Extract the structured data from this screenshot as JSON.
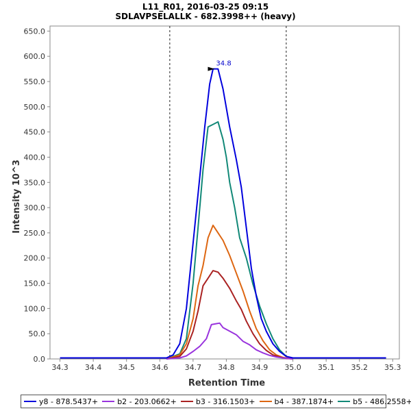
{
  "chart_data": {
    "type": "line",
    "title": "L11_R01, 2016-03-25 09:15",
    "subtitle": "SDLAVPSELALLK - 682.3998++ (heavy)",
    "xlabel": "Retention Time",
    "ylabel": "Intensity 10^3",
    "xlim": [
      34.27,
      35.32
    ],
    "ylim": [
      0,
      660
    ],
    "x_ticks": [
      "34.3",
      "34.4",
      "34.5",
      "34.6",
      "34.7",
      "34.8",
      "34.9",
      "35.0",
      "35.1",
      "35.2",
      "35.3"
    ],
    "x_tick_values": [
      34.3,
      34.4,
      34.5,
      34.6,
      34.7,
      34.8,
      34.9,
      35.0,
      35.1,
      35.2,
      35.3
    ],
    "y_ticks": [
      "0.0",
      "50.0",
      "100.0",
      "150.0",
      "200.0",
      "250.0",
      "300.0",
      "350.0",
      "400.0",
      "450.0",
      "500.0",
      "550.0",
      "600.0",
      "650.0"
    ],
    "y_tick_values": [
      0,
      50,
      100,
      150,
      200,
      250,
      300,
      350,
      400,
      450,
      500,
      550,
      600,
      650
    ],
    "vlines": [
      34.63,
      34.98
    ],
    "peak_annotation": {
      "text": "34.8",
      "x": 34.765,
      "y": 575
    },
    "grid": false,
    "legend_position": "bottom",
    "series": [
      {
        "name": "y8 - 878.5437+",
        "color": "#0000dd",
        "x": [
          34.3,
          34.62,
          34.64,
          34.66,
          34.68,
          34.7,
          34.72,
          34.735,
          34.75,
          34.76,
          34.775,
          34.79,
          34.81,
          34.83,
          34.845,
          34.86,
          34.875,
          34.89,
          34.905,
          34.92,
          34.94,
          34.96,
          34.98,
          35.0,
          35.28
        ],
        "y": [
          2,
          2,
          8,
          30,
          100,
          230,
          360,
          460,
          545,
          575,
          575,
          535,
          460,
          395,
          340,
          260,
          180,
          125,
          80,
          55,
          30,
          15,
          5,
          2,
          2
        ]
      },
      {
        "name": "b2 - 203.0662+",
        "color": "#9933dd",
        "x": [
          34.62,
          34.66,
          34.68,
          34.7,
          34.72,
          34.74,
          34.755,
          34.77,
          34.78,
          34.79,
          34.81,
          34.83,
          34.85,
          34.87,
          34.89,
          34.91,
          34.93,
          34.95,
          34.97,
          35.0
        ],
        "y": [
          0,
          2,
          6,
          15,
          25,
          40,
          68,
          70,
          71,
          62,
          55,
          48,
          35,
          28,
          18,
          12,
          7,
          4,
          2,
          0
        ]
      },
      {
        "name": "b3 - 316.1503+",
        "color": "#aa2222",
        "x": [
          34.62,
          34.66,
          34.68,
          34.7,
          34.715,
          34.73,
          34.745,
          34.76,
          34.775,
          34.79,
          34.81,
          34.83,
          34.845,
          34.86,
          34.88,
          34.9,
          34.92,
          34.94,
          34.96,
          34.98,
          35.0
        ],
        "y": [
          0,
          5,
          20,
          55,
          95,
          145,
          160,
          175,
          172,
          160,
          140,
          115,
          98,
          75,
          50,
          30,
          17,
          8,
          4,
          1,
          0
        ]
      },
      {
        "name": "b4 - 387.1874+",
        "color": "#dd6611",
        "x": [
          34.62,
          34.66,
          34.68,
          34.7,
          34.715,
          34.73,
          34.745,
          34.76,
          34.775,
          34.79,
          34.81,
          34.83,
          34.85,
          34.87,
          34.89,
          34.91,
          34.93,
          34.95,
          34.97,
          35.0
        ],
        "y": [
          0,
          8,
          30,
          80,
          145,
          185,
          240,
          265,
          250,
          235,
          205,
          170,
          135,
          95,
          60,
          36,
          18,
          8,
          3,
          0
        ]
      },
      {
        "name": "b5 - 486.2558+",
        "color": "#118877",
        "x": [
          34.62,
          34.66,
          34.68,
          34.7,
          34.715,
          34.73,
          34.745,
          34.76,
          34.775,
          34.79,
          34.8,
          34.81,
          34.825,
          34.84,
          34.86,
          34.88,
          34.9,
          34.92,
          34.94,
          34.96,
          34.98,
          35.0
        ],
        "y": [
          0,
          10,
          40,
          150,
          260,
          375,
          460,
          465,
          470,
          435,
          400,
          350,
          300,
          240,
          200,
          148,
          105,
          70,
          40,
          18,
          5,
          0
        ]
      }
    ]
  }
}
